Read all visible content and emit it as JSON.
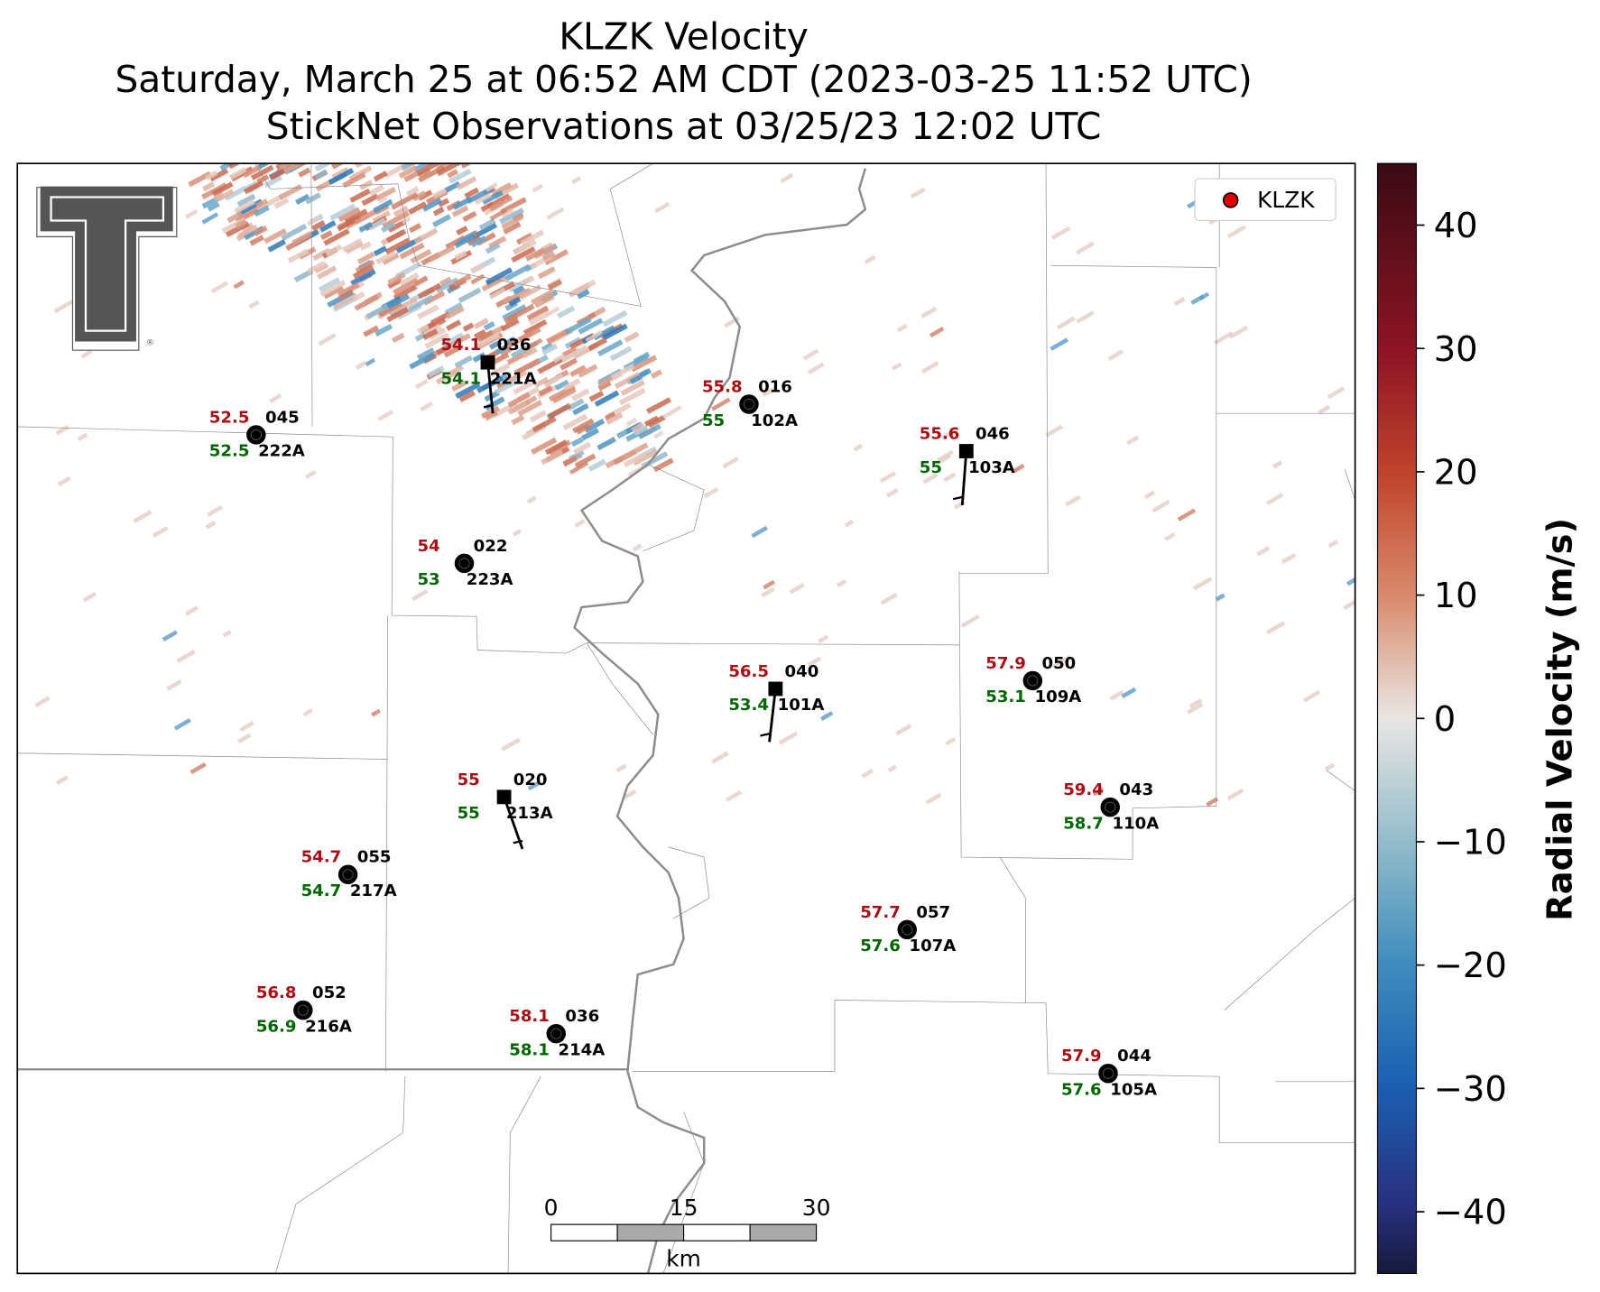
{
  "title": [
    "KLZK Velocity",
    "Saturday, March 25 at 06:52 AM CDT (2023-03-25 11:52 UTC)",
    "StickNet Observations at 03/25/23 12:02 UTC"
  ],
  "legend": {
    "label": "KLZK"
  },
  "colorbar": {
    "label": "Radial Velocity (m/s)",
    "ylim": [
      -45,
      45
    ],
    "yticks": [
      {
        "value": -40,
        "label": "−40"
      },
      {
        "value": -30,
        "label": "−30"
      },
      {
        "value": -20,
        "label": "−20"
      },
      {
        "value": -10,
        "label": "−10"
      },
      0,
      10,
      20,
      30,
      40
    ]
  },
  "scale_bar": {
    "ticks": [
      0,
      15,
      30
    ],
    "unit": "km"
  },
  "stations": [
    {
      "id": "221A",
      "temperature": 54.1,
      "dewpoint": 54.1,
      "wind_direction": "036"
    },
    {
      "id": "102A",
      "temperature": 55.8,
      "dewpoint": 55.0,
      "wind_direction": "016"
    },
    {
      "id": "222A",
      "temperature": 52.5,
      "dewpoint": 52.5,
      "wind_direction": "045"
    },
    {
      "id": "103A",
      "temperature": 55.6,
      "dewpoint": 55.0,
      "wind_direction": "046"
    },
    {
      "id": "223A",
      "temperature": 54.0,
      "dewpoint": 53.0,
      "wind_direction": "022"
    },
    {
      "id": "109A",
      "temperature": 57.9,
      "dewpoint": 53.1,
      "wind_direction": "050"
    },
    {
      "id": "101A",
      "temperature": 56.5,
      "dewpoint": 53.4,
      "wind_direction": "040"
    },
    {
      "id": "110A",
      "temperature": 59.4,
      "dewpoint": 58.7,
      "wind_direction": "043"
    },
    {
      "id": "213A",
      "temperature": 55.0,
      "dewpoint": 55.0,
      "wind_direction": "020"
    },
    {
      "id": "217A",
      "temperature": 54.7,
      "dewpoint": 54.7,
      "wind_direction": "055"
    },
    {
      "id": "107A",
      "temperature": 57.7,
      "dewpoint": 57.6,
      "wind_direction": "057"
    },
    {
      "id": "216A",
      "temperature": 56.8,
      "dewpoint": 56.9,
      "wind_direction": "052"
    },
    {
      "id": "214A",
      "temperature": 58.1,
      "dewpoint": 58.1,
      "wind_direction": "036"
    },
    {
      "id": "105A",
      "temperature": 57.9,
      "dewpoint": 57.6,
      "wind_direction": "044"
    }
  ]
}
